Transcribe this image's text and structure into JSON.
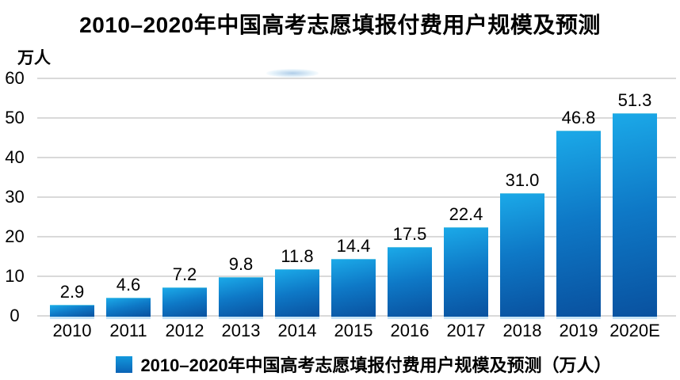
{
  "title": "2010–2020年中国高考志愿填报付费用户规模及预测",
  "y_axis_unit": "万人",
  "legend": {
    "label": "2010–2020年中国高考志愿填报付费用户规模及预测（万人）",
    "marker_color": "#0d84cf"
  },
  "chart_data": {
    "type": "bar",
    "title": "2010–2020年中国高考志愿填报付费用户规模及预测",
    "ylabel": "万人",
    "categories": [
      "2010",
      "2011",
      "2012",
      "2013",
      "2014",
      "2015",
      "2016",
      "2017",
      "2018",
      "2019",
      "2020E"
    ],
    "values": [
      2.9,
      4.6,
      7.2,
      9.8,
      11.8,
      14.4,
      17.5,
      22.4,
      31.0,
      46.8,
      51.3
    ],
    "value_labels": [
      "2.9",
      "4.6",
      "7.2",
      "9.8",
      "11.8",
      "14.4",
      "17.5",
      "22.4",
      "31.0",
      "46.8",
      "51.3"
    ],
    "ylim": [
      0,
      60
    ],
    "yticks": [
      0,
      10,
      20,
      30,
      40,
      50,
      60
    ],
    "grid": true,
    "legend": [
      "2010–2020年中国高考志愿填报付费用户规模及预测（万人）"
    ],
    "legend_position": "bottom",
    "colors": {
      "bar_top": "#1ba9e8",
      "bar_bottom": "#09519f",
      "gridline": "#d9d9d9",
      "text": "#000000",
      "background": "#ffffff"
    }
  }
}
